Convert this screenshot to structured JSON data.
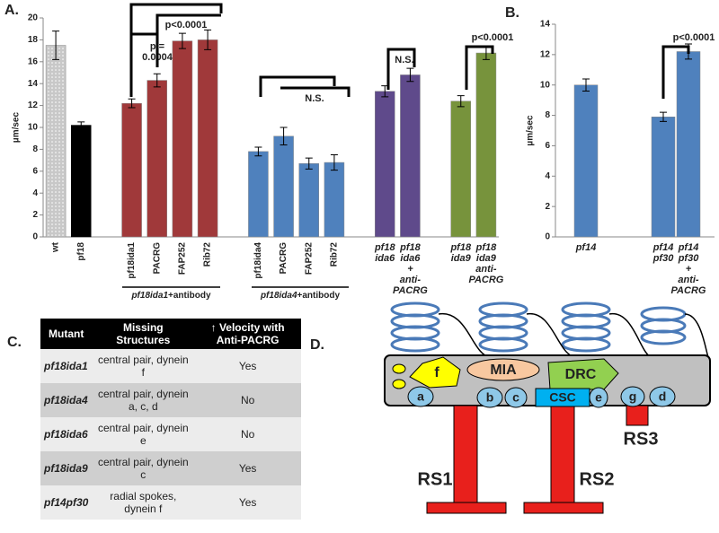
{
  "chart_data": [
    {
      "type": "bar",
      "panel": "A.",
      "y_label": "µm/sec",
      "categories": [
        "wt",
        "pf18",
        "pf18ida1",
        "PACRG",
        "FAP252",
        "Rib72",
        "pf18ida4",
        "PACRG",
        "FAP252",
        "Rib72",
        "pf18\nida6",
        "pf18\nida6\n+\nanti-\nPACRG",
        "pf18\nida9",
        "pf18\nida9\nanti-\nPACRG"
      ],
      "values": [
        17.5,
        10.2,
        12.2,
        14.3,
        17.9,
        18.0,
        7.8,
        9.2,
        6.7,
        6.8,
        13.3,
        14.8,
        12.4,
        16.8
      ],
      "errors": [
        1.3,
        0.3,
        0.4,
        0.6,
        0.7,
        0.9,
        0.4,
        0.8,
        0.5,
        0.7,
        0.5,
        0.6,
        0.5,
        0.6
      ],
      "colors": [
        "#c8c8c8",
        "#000000",
        "#a0393a",
        "#a0393a",
        "#a0393a",
        "#a0393a",
        "#4f81bd",
        "#4f81bd",
        "#4f81bd",
        "#4f81bd",
        "#5f4a8b",
        "#5f4a8b",
        "#77933c",
        "#77933c"
      ],
      "ylim": [
        0,
        20
      ],
      "yticks": [
        0,
        2,
        4,
        6,
        8,
        10,
        12,
        14,
        16,
        18,
        20
      ],
      "group_labels": [
        {
          "strain": "pf18ida1",
          "suffix": "+antibody"
        },
        {
          "strain": "pf18ida4",
          "suffix": "+antibody"
        }
      ],
      "annotations": [
        "p =",
        "0.0004",
        "p<0.0001",
        "N.S.",
        "N.S.",
        "p<0.0001"
      ]
    },
    {
      "type": "bar",
      "panel": "B.",
      "y_label": "µm/sec",
      "categories": [
        "pf14",
        "pf14\npf30",
        "pf14\npf30\n+\nanti-\nPACRG"
      ],
      "values": [
        10.0,
        7.9,
        12.2
      ],
      "errors": [
        0.4,
        0.3,
        0.5
      ],
      "colors": [
        "#4f81bd",
        "#4f81bd",
        "#4f81bd"
      ],
      "ylim": [
        0,
        14
      ],
      "yticks": [
        0,
        2,
        4,
        6,
        8,
        10,
        12,
        14
      ],
      "group_labels": [],
      "annotations": [
        "p<0.0001"
      ]
    }
  ],
  "table": {
    "panel": "C.",
    "header": [
      "Mutant",
      "Missing Structures",
      "↑ Velocity with Anti-PACRG"
    ],
    "rows": [
      [
        "pf18ida1",
        "central pair, dynein f",
        "Yes"
      ],
      [
        "pf18ida4",
        "central pair, dynein a, c, d",
        "No"
      ],
      [
        "pf18ida6",
        "central pair, dynein e",
        "No"
      ],
      [
        "pf18ida9",
        "central pair, dynein c",
        "Yes"
      ],
      [
        "pf14pf30",
        "radial spokes, dynein f",
        "Yes"
      ]
    ]
  },
  "diagram": {
    "panel": "D.",
    "labels": [
      "f",
      "MIA",
      "DRC",
      "a",
      "b",
      "c",
      "CSC",
      "e",
      "g",
      "d",
      "RS1",
      "RS2",
      "RS3"
    ]
  }
}
